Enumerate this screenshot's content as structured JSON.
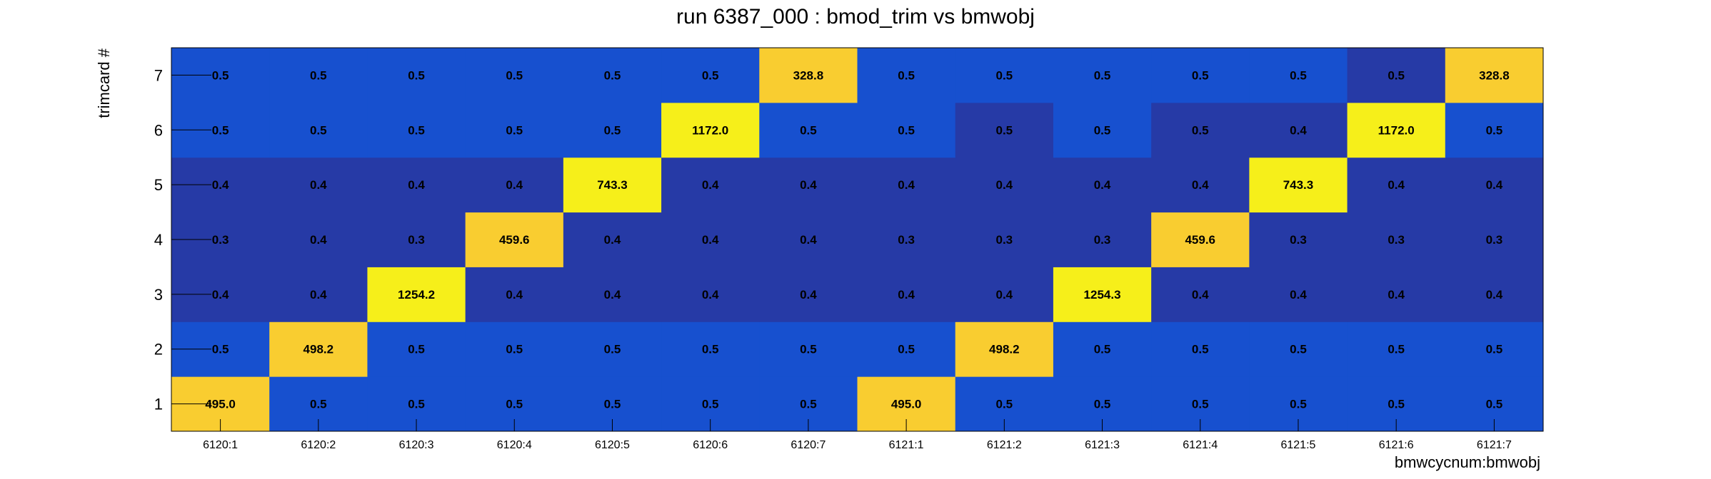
{
  "chart_data": {
    "type": "heatmap",
    "title": "run 6387_000 : bmod_trim vs bmwobj",
    "xlabel": "bmwcycnum:bmwobj",
    "ylabel": "trimcard #",
    "x_categories": [
      "6120:1",
      "6120:2",
      "6120:3",
      "6120:4",
      "6120:5",
      "6120:6",
      "6120:7",
      "6121:1",
      "6121:2",
      "6121:3",
      "6121:4",
      "6121:5",
      "6121:6",
      "6121:7"
    ],
    "y_categories": [
      "1",
      "2",
      "3",
      "4",
      "5",
      "6",
      "7"
    ],
    "values": [
      [
        495.0,
        0.5,
        0.5,
        0.5,
        0.5,
        0.5,
        0.5,
        495.0,
        0.5,
        0.5,
        0.5,
        0.5,
        0.5,
        0.5
      ],
      [
        0.5,
        498.2,
        0.5,
        0.5,
        0.5,
        0.5,
        0.5,
        0.5,
        498.2,
        0.5,
        0.5,
        0.5,
        0.5,
        0.5
      ],
      [
        0.4,
        0.4,
        1254.2,
        0.4,
        0.4,
        0.4,
        0.4,
        0.4,
        0.4,
        1254.3,
        0.4,
        0.4,
        0.4,
        0.4
      ],
      [
        0.3,
        0.4,
        0.3,
        459.6,
        0.4,
        0.4,
        0.4,
        0.3,
        0.3,
        0.3,
        459.6,
        0.3,
        0.3,
        0.3
      ],
      [
        0.4,
        0.4,
        0.4,
        0.4,
        743.3,
        0.4,
        0.4,
        0.4,
        0.4,
        0.4,
        0.4,
        743.3,
        0.4,
        0.4
      ],
      [
        0.5,
        0.5,
        0.5,
        0.5,
        0.5,
        1172.0,
        0.5,
        0.5,
        0.5,
        0.5,
        0.5,
        0.4,
        1172.0,
        0.5
      ],
      [
        0.5,
        0.5,
        0.5,
        0.5,
        0.5,
        0.5,
        328.8,
        0.5,
        0.5,
        0.5,
        0.5,
        0.5,
        0.5,
        328.8
      ]
    ],
    "labels": [
      [
        "495.0",
        "0.5",
        "0.5",
        "0.5",
        "0.5",
        "0.5",
        "0.5",
        "495.0",
        "0.5",
        "0.5",
        "0.5",
        "0.5",
        "0.5",
        "0.5"
      ],
      [
        "0.5",
        "498.2",
        "0.5",
        "0.5",
        "0.5",
        "0.5",
        "0.5",
        "0.5",
        "498.2",
        "0.5",
        "0.5",
        "0.5",
        "0.5",
        "0.5"
      ],
      [
        "0.4",
        "0.4",
        "1254.2",
        "0.4",
        "0.4",
        "0.4",
        "0.4",
        "0.4",
        "0.4",
        "1254.3",
        "0.4",
        "0.4",
        "0.4",
        "0.4"
      ],
      [
        "0.3",
        "0.4",
        "0.3",
        "459.6",
        "0.4",
        "0.4",
        "0.4",
        "0.3",
        "0.3",
        "0.3",
        "459.6",
        "0.3",
        "0.3",
        "0.3"
      ],
      [
        "0.4",
        "0.4",
        "0.4",
        "0.4",
        "743.3",
        "0.4",
        "0.4",
        "0.4",
        "0.4",
        "0.4",
        "0.4",
        "743.3",
        "0.4",
        "0.4"
      ],
      [
        "0.5",
        "0.5",
        "0.5",
        "0.5",
        "0.5",
        "1172.0",
        "0.5",
        "0.5",
        "0.5",
        "0.5",
        "0.5",
        "0.4",
        "1172.0",
        "0.5"
      ],
      [
        "0.5",
        "0.5",
        "0.5",
        "0.5",
        "0.5",
        "0.5",
        "328.8",
        "0.5",
        "0.5",
        "0.5",
        "0.5",
        "0.5",
        "0.5",
        "328.8"
      ]
    ],
    "cell_color_levels": [
      [
        "high",
        "low",
        "low",
        "low",
        "low",
        "low",
        "low",
        "high",
        "low",
        "low",
        "low",
        "low",
        "low",
        "low"
      ],
      [
        "low",
        "high",
        "low",
        "low",
        "low",
        "low",
        "low",
        "low",
        "high",
        "low",
        "low",
        "low",
        "low",
        "low"
      ],
      [
        "dark",
        "dark",
        "peak",
        "dark",
        "dark",
        "dark",
        "dark",
        "dark",
        "dark",
        "peak",
        "dark",
        "dark",
        "dark",
        "dark"
      ],
      [
        "dark",
        "dark",
        "dark",
        "high",
        "dark",
        "dark",
        "dark",
        "dark",
        "dark",
        "dark",
        "high",
        "dark",
        "dark",
        "dark"
      ],
      [
        "dark",
        "dark",
        "dark",
        "dark",
        "peak",
        "dark",
        "dark",
        "dark",
        "dark",
        "dark",
        "dark",
        "peak",
        "dark",
        "dark"
      ],
      [
        "low",
        "low",
        "low",
        "low",
        "low",
        "peak",
        "low",
        "low",
        "dark",
        "low",
        "dark",
        "dark",
        "peak",
        "low"
      ],
      [
        "low",
        "low",
        "low",
        "low",
        "low",
        "low",
        "high",
        "low",
        "low",
        "low",
        "low",
        "low",
        "dark",
        "high"
      ]
    ],
    "palette": {
      "low": "#1750cf",
      "dark": "#263aa6",
      "high": "#f9cd30",
      "peak": "#f6ef1a"
    },
    "grid": false,
    "legend": "none"
  }
}
